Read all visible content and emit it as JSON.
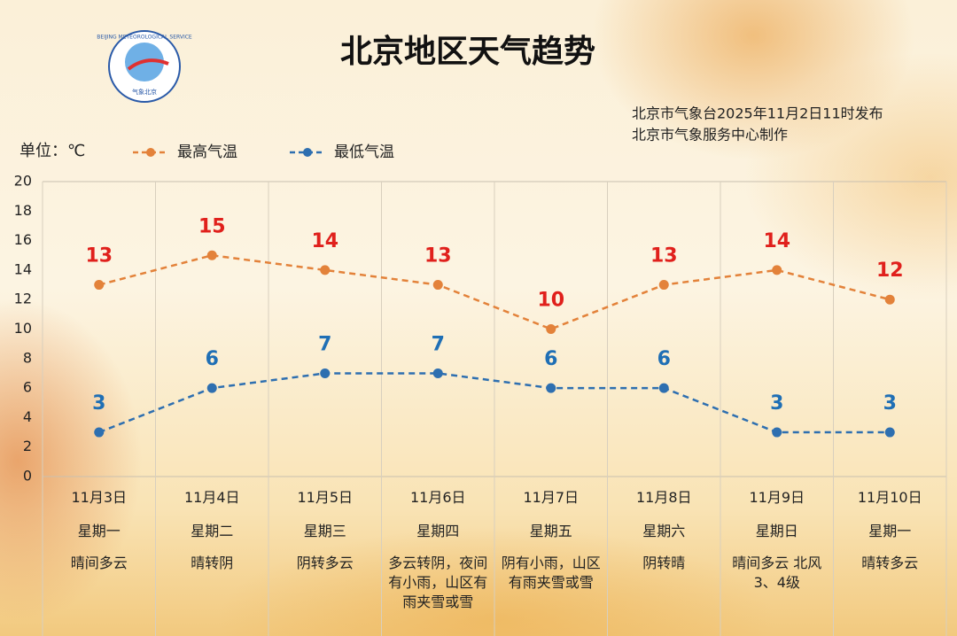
{
  "chart_data": {
    "type": "line",
    "title": "北京地区天气趋势",
    "notes": [
      "北京市气象台2025年11月2日11时发布",
      "北京市气象服务中心制作"
    ],
    "unit_label": "单位：℃",
    "logo_text": [
      "BEIJING METEOROLOGICAL SERVICE",
      "气象北京"
    ],
    "categories": [
      "11月3日",
      "11月4日",
      "11月5日",
      "11月6日",
      "11月7日",
      "11月8日",
      "11月9日",
      "11月10日"
    ],
    "weekdays": [
      "星期一",
      "星期二",
      "星期三",
      "星期四",
      "星期五",
      "星期六",
      "星期日",
      "星期一"
    ],
    "weather": [
      "晴间多云",
      "晴转阴",
      "阴转多云",
      "多云转阴，夜间有小雨，山区有雨夹雪或雪",
      "阴有小雨，山区有雨夹雪或雪",
      "阴转晴",
      "晴间多云 北风3、4级",
      "晴转多云"
    ],
    "series": [
      {
        "name": "最高气温",
        "color": "#e3823a",
        "label_color": "#e0201c",
        "values": [
          13,
          15,
          14,
          13,
          10,
          13,
          14,
          12
        ]
      },
      {
        "name": "最低气温",
        "color": "#2e6fb0",
        "label_color": "#1f6fb5",
        "values": [
          3,
          6,
          7,
          7,
          6,
          6,
          3,
          3
        ]
      }
    ],
    "ylim": [
      0,
      20
    ],
    "yticks": [
      0,
      2,
      4,
      6,
      8,
      10,
      12,
      14,
      16,
      18,
      20
    ]
  }
}
